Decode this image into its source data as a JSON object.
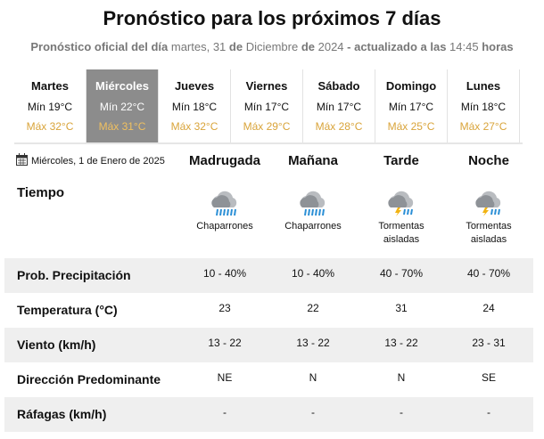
{
  "header": {
    "title": "Pronóstico para los próximos 7 días",
    "subtitle": [
      {
        "text": "Pronóstico oficial del día",
        "bold": true
      },
      {
        "text": " martes, 31 ",
        "bold": false
      },
      {
        "text": "de",
        "bold": true
      },
      {
        "text": " Diciembre ",
        "bold": false
      },
      {
        "text": "de",
        "bold": true
      },
      {
        "text": " 2024 ",
        "bold": false
      },
      {
        "text": "- actualizado a las",
        "bold": true
      },
      {
        "text": " 14:45 ",
        "bold": false
      },
      {
        "text": "horas",
        "bold": true
      }
    ]
  },
  "days": [
    {
      "name": "Martes",
      "min": "Mín 19°C",
      "max": "Máx 32°C"
    },
    {
      "name": "Miércoles",
      "min": "Mín 22°C",
      "max": "Máx 31°C",
      "selected": true
    },
    {
      "name": "Jueves",
      "min": "Mín 18°C",
      "max": "Máx 32°C"
    },
    {
      "name": "Viernes",
      "min": "Mín 17°C",
      "max": "Máx 29°C"
    },
    {
      "name": "Sábado",
      "min": "Mín 17°C",
      "max": "Máx 28°C"
    },
    {
      "name": "Domingo",
      "min": "Mín 17°C",
      "max": "Máx 25°C"
    },
    {
      "name": "Lunes",
      "min": "Mín 18°C",
      "max": "Máx 27°C"
    }
  ],
  "date": "Miércoles, 1 de Enero de 2025",
  "periods": [
    "Madrugada",
    "Mañana",
    "Tarde",
    "Noche"
  ],
  "weather": {
    "label": "Tiempo",
    "conditions": [
      [
        "Chaparrones"
      ],
      [
        "Chaparrones"
      ],
      [
        "Tormentas",
        "aisladas"
      ],
      [
        "Tormentas",
        "aisladas"
      ]
    ]
  },
  "table": {
    "rows": [
      {
        "label": "Prob. Precipitación",
        "values": [
          "10 - 40%",
          "10 - 40%",
          "40 - 70%",
          "40 - 70%"
        ]
      },
      {
        "label": "Temperatura (°C)",
        "values": [
          "23",
          "22",
          "31",
          "24"
        ]
      },
      {
        "label": "Viento (km/h)",
        "values": [
          "13 - 22",
          "13 - 22",
          "13 - 22",
          "23 - 31"
        ]
      },
      {
        "label": "Dirección Predominante",
        "values": [
          "NE",
          "N",
          "N",
          "SE"
        ]
      },
      {
        "label": "Ráfagas (km/h)",
        "values": [
          "-",
          "-",
          "-",
          "-"
        ]
      }
    ]
  }
}
